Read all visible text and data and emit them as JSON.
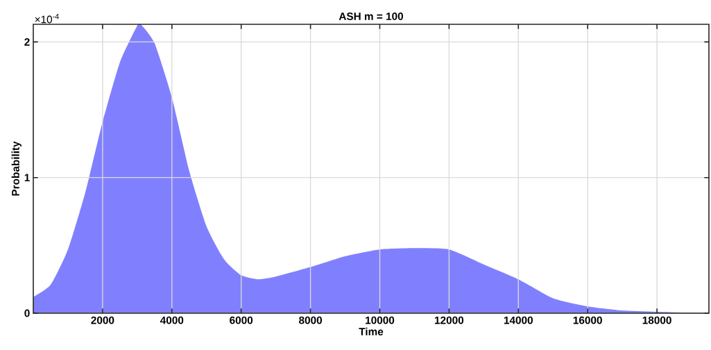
{
  "chart_data": {
    "type": "area",
    "title": "ASH m = 100",
    "xlabel": "Time",
    "ylabel": "Probability",
    "annotations": [
      "×10$^{-4}$"
    ],
    "x": [
      0,
      500,
      1000,
      1500,
      2000,
      2500,
      3000,
      3100,
      3500,
      4000,
      4500,
      5000,
      5500,
      6000,
      6500,
      7000,
      8000,
      9000,
      10000,
      11000,
      12000,
      13000,
      14000,
      15000,
      16000,
      17000,
      18000,
      19500
    ],
    "series": [
      {
        "color": "#8080ff",
        "values": [
          0.12,
          0.21,
          0.47,
          0.89,
          1.41,
          1.85,
          2.12,
          2.13,
          1.99,
          1.59,
          1.05,
          0.64,
          0.4,
          0.28,
          0.25,
          0.27,
          0.34,
          0.42,
          0.47,
          0.48,
          0.47,
          0.36,
          0.25,
          0.11,
          0.05,
          0.02,
          0.01,
          0
        ]
      }
    ],
    "xlim": [
      0,
      19500
    ],
    "ylim": [
      0,
      2.13
    ],
    "xticks": [
      2000,
      4000,
      6000,
      8000,
      10000,
      12000,
      14000,
      16000,
      18000
    ],
    "yticks": [
      0,
      1,
      2
    ],
    "grid": true
  }
}
